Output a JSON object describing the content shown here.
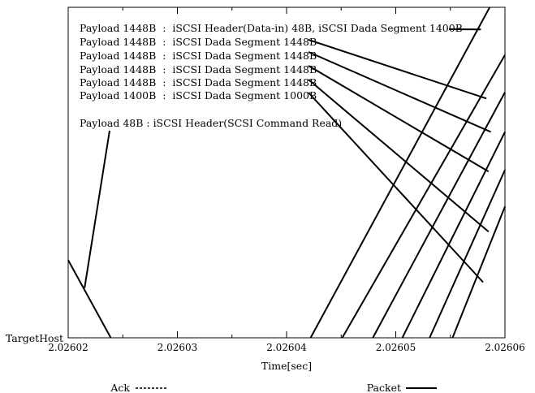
{
  "chart_data": {
    "type": "line",
    "xlabel": "Time[sec]",
    "ylabel": "TargetHost",
    "xlim": [
      2.02602,
      2.02606
    ],
    "ylim": [
      0,
      1
    ],
    "x_ticks": [
      "2.02602",
      "2.02603",
      "2.02604",
      "2.02605",
      "2.02606"
    ],
    "legend_position": "bottom",
    "legend": [
      {
        "name": "Ack",
        "style": "dashed"
      },
      {
        "name": "Packet",
        "style": "solid"
      }
    ],
    "series": [
      {
        "name": "Packet",
        "segments": [
          {
            "x": [
              2.02602,
              2.0260239
            ],
            "y": [
              0.235,
              0
            ]
          },
          {
            "x": [
              2.0260422,
              2.0260586
            ],
            "y": [
              0,
              1
            ]
          },
          {
            "x": [
              2.0260451,
              2.02606
            ],
            "y": [
              0,
              0.856
            ]
          },
          {
            "x": [
              2.0260479,
              2.02606
            ],
            "y": [
              0,
              0.743
            ]
          },
          {
            "x": [
              2.0260506,
              2.02606
            ],
            "y": [
              0,
              0.623
            ]
          },
          {
            "x": [
              2.0260531,
              2.02606
            ],
            "y": [
              0,
              0.508
            ]
          },
          {
            "x": [
              2.0260552,
              2.02606
            ],
            "y": [
              0,
              0.397
            ]
          }
        ]
      }
    ],
    "annotations": [
      {
        "text": "Payload 1448B  :  iSCSI Header(Data-in) 48B, iSCSI Dada Segment 1400B",
        "target": [
          2.0260578,
          0.933
        ]
      },
      {
        "text": "Payload 1448B  :  iSCSI Dada Segment 1448B",
        "target": [
          2.0260583,
          0.724
        ]
      },
      {
        "text": "Payload 1448B  :  iSCSI Dada Segment 1448B",
        "target": [
          2.0260587,
          0.623
        ]
      },
      {
        "text": "Payload 1448B  :  iSCSI Dada Segment 1448B",
        "target": [
          2.0260585,
          0.503
        ]
      },
      {
        "text": "Payload 1448B  :  iSCSI Dada Segment 1448B",
        "target": [
          2.0260585,
          0.321
        ]
      },
      {
        "text": "Payload 1400B  :  iSCSI Dada Segment 1000B",
        "target": [
          2.026058,
          0.168
        ]
      },
      {
        "text": "Payload 48B : iSCSI Header(SCSI Command Read)",
        "target": [
          2.0260215,
          0.151
        ]
      }
    ]
  }
}
